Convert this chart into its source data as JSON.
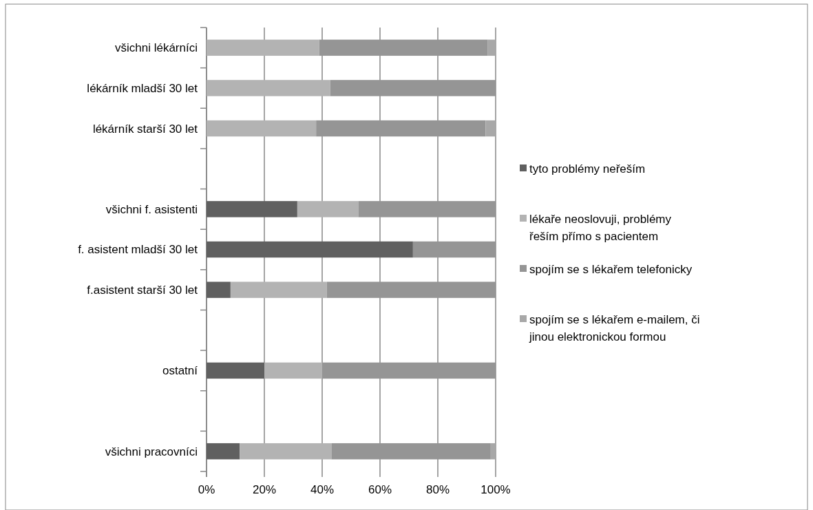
{
  "chart_data": {
    "type": "bar",
    "orientation": "horizontal",
    "stacked": true,
    "categories": [
      "všichni lékárníci",
      "lékárník mladší 30 let",
      "lékárník starší 30 let",
      null,
      "všichni f. asistenti",
      "f. asistent mladší 30 let",
      "f.asistent starší 30 let",
      null,
      "ostatní",
      null,
      "všichni pracovníci"
    ],
    "series": [
      {
        "name": "tyto problémy neřeším",
        "color": "#606060",
        "values": [
          0,
          0,
          0,
          null,
          31.4,
          71.4,
          8.3,
          null,
          20,
          null,
          11.5
        ]
      },
      {
        "name": "lékaře neoslovuji, problémy řeším přímo s pacientem",
        "color": "#b3b3b3",
        "values": [
          39,
          42.8,
          37.9,
          null,
          21.2,
          0,
          33.3,
          null,
          20,
          null,
          31.7
        ]
      },
      {
        "name": "spojím se s lékařem telefonicky",
        "color": "#959595",
        "values": [
          58.3,
          57.2,
          58.6,
          null,
          47.4,
          28.6,
          58.4,
          null,
          60,
          null,
          55.1
        ]
      },
      {
        "name": "spojím se s lékařem e-mailem, či jinou elektronickou formou",
        "color": "#a8a8a8",
        "values": [
          2.7,
          0,
          3.5,
          null,
          0,
          0,
          0,
          null,
          0,
          null,
          1.7
        ]
      }
    ],
    "xlim": [
      0,
      100
    ],
    "xticks": [
      {
        "value": 0,
        "label": "0%"
      },
      {
        "value": 20,
        "label": "20%"
      },
      {
        "value": 40,
        "label": "40%"
      },
      {
        "value": 60,
        "label": "60%"
      },
      {
        "value": 80,
        "label": "80%"
      },
      {
        "value": 100,
        "label": "100%"
      }
    ],
    "grid": "x",
    "legend": "right"
  }
}
